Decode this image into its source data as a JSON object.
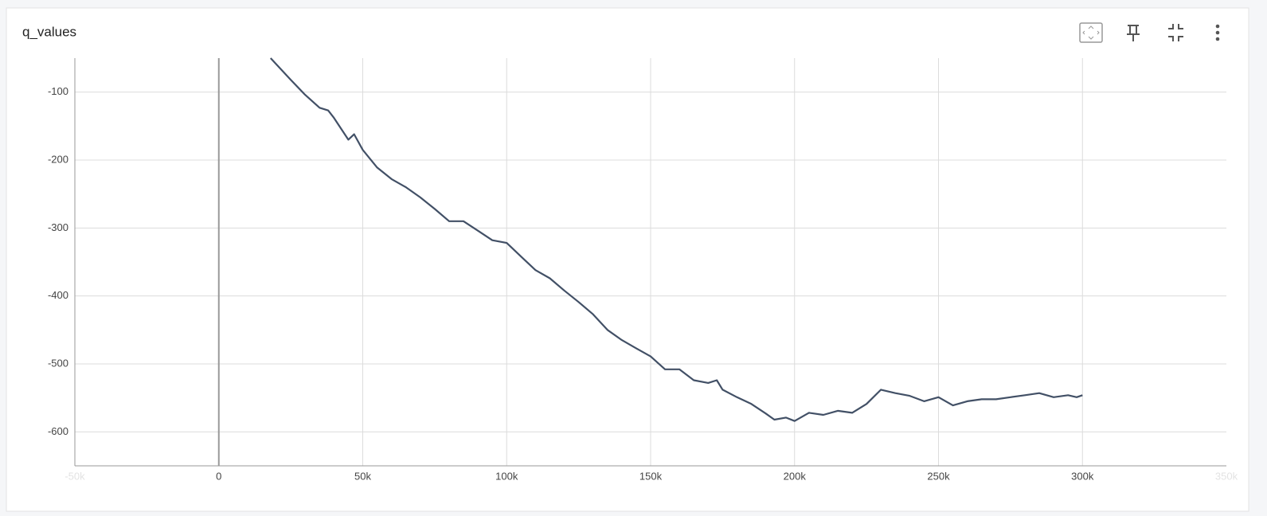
{
  "chart_data": {
    "type": "line",
    "title": "q_values",
    "x": [
      18000,
      25000,
      30000,
      35000,
      38000,
      40000,
      45000,
      47000,
      50000,
      55000,
      60000,
      65000,
      70000,
      75000,
      80000,
      85000,
      90000,
      95000,
      100000,
      105000,
      110000,
      115000,
      120000,
      125000,
      130000,
      135000,
      140000,
      145000,
      150000,
      155000,
      160000,
      165000,
      170000,
      173000,
      175000,
      180000,
      185000,
      190000,
      193000,
      197000,
      200000,
      205000,
      210000,
      215000,
      220000,
      225000,
      230000,
      235000,
      240000,
      245000,
      250000,
      255000,
      260000,
      265000,
      270000,
      275000,
      280000,
      285000,
      290000,
      295000,
      298000,
      300000
    ],
    "series": [
      {
        "name": "q_values",
        "color": "#425066",
        "values": [
          -50,
          -82,
          -104,
          -123,
          -127,
          -138,
          -170,
          -162,
          -185,
          -211,
          -228,
          -240,
          -255,
          -272,
          -290,
          -290,
          -304,
          -318,
          -322,
          -342,
          -362,
          -374,
          -392,
          -409,
          -427,
          -450,
          -465,
          -477,
          -489,
          -508,
          -508,
          -524,
          -528,
          -524,
          -538,
          -549,
          -559,
          -573,
          -582,
          -579,
          -584,
          -572,
          -575,
          -569,
          -572,
          -559,
          -538,
          -543,
          -547,
          -555,
          -549,
          -561,
          -555,
          -552,
          -552,
          -549,
          -546,
          -543,
          -549,
          -546,
          -549,
          -546
        ]
      }
    ],
    "xlim": [
      -50000,
      350000
    ],
    "xticks": [
      {
        "value": -50000,
        "label": "-50k"
      },
      0,
      {
        "value": 50000,
        "label": "50k"
      },
      {
        "value": 100000,
        "label": "100k"
      },
      {
        "value": 150000,
        "label": "150k"
      },
      {
        "value": 200000,
        "label": "200k"
      },
      {
        "value": 250000,
        "label": "250k"
      },
      {
        "value": 300000,
        "label": "300k"
      },
      {
        "value": 350000,
        "label": "350k"
      }
    ],
    "ylim": [
      -650,
      -50
    ],
    "yticks": [
      -100,
      -200,
      -300,
      -400,
      -500,
      -600
    ],
    "grid": true
  }
}
